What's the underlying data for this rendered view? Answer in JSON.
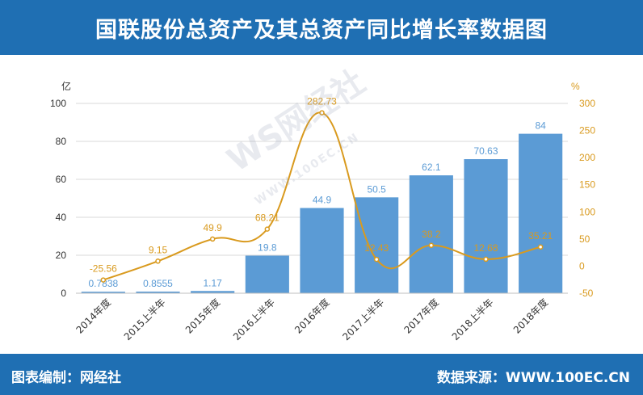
{
  "header": {
    "title": "国联股份总资产及其总资产同比增长率数据图"
  },
  "footer": {
    "left_text": "图表编制：网经社",
    "right_text": "数据来源：WWW.100EC.CN"
  },
  "watermark": {
    "logo_text": "WS网经社",
    "url_text": "WWW.100EC.CN"
  },
  "colors": {
    "bar": "#5b9bd5",
    "line": "#d99a1e",
    "bar_label": "#5b9bd5",
    "line_label": "#d99a1e",
    "header_bg": "#1f6fb3"
  },
  "chart_data": {
    "type": "bar+line",
    "categories": [
      "2014年度",
      "2015上半年",
      "2015年度",
      "2016上半年",
      "2016年度",
      "2017上半年",
      "2017年度",
      "2018上半年",
      "2018年度"
    ],
    "series": [
      {
        "type": "bar",
        "axis": "left",
        "values": [
          0.7838,
          0.8555,
          1.17,
          19.8,
          44.9,
          50.5,
          62.1,
          70.63,
          84
        ],
        "labels": [
          "0.7838",
          "0.8555",
          "1.17",
          "19.8",
          "44.9",
          "50.5",
          "62.1",
          "70.63",
          "84"
        ]
      },
      {
        "type": "line",
        "axis": "right",
        "smooth": true,
        "values": [
          -25.56,
          9.15,
          49.9,
          68.21,
          282.73,
          12.43,
          38.2,
          12.68,
          35.21
        ],
        "labels": [
          "-25.56",
          "9.15",
          "49.9",
          "68.21",
          "282.73",
          "12.43",
          "38.2",
          "12.68",
          "35.21"
        ]
      }
    ],
    "left_axis": {
      "unit": "亿",
      "range": [
        0,
        100
      ],
      "ticks": [
        0,
        20,
        40,
        60,
        80,
        100
      ]
    },
    "right_axis": {
      "unit": "%",
      "range": [
        -50,
        300
      ],
      "ticks": [
        -50,
        0,
        50,
        100,
        150,
        200,
        250,
        300
      ]
    },
    "grid": true,
    "legend": "none"
  }
}
